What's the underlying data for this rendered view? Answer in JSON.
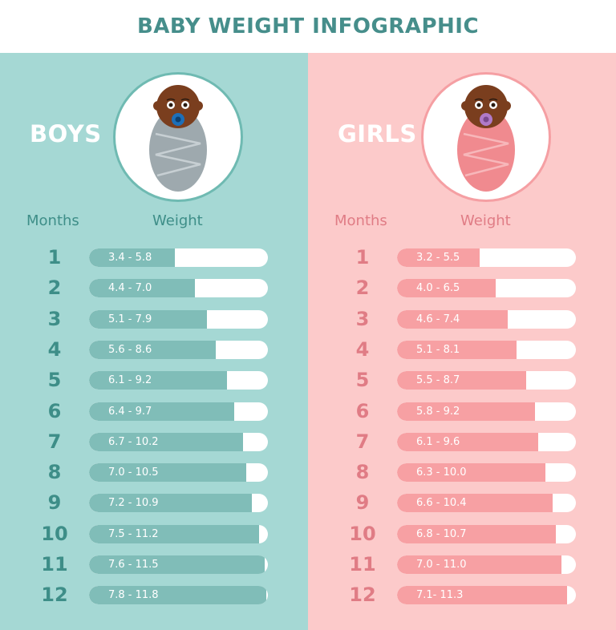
{
  "title": "BABY WEIGHT INFOGRAPHIC",
  "colors": {
    "title": "#468e8b",
    "boys_bg": "#a5d8d4",
    "boys_bar": "#80bdb8",
    "boys_text": "#3e8e88",
    "girls_bg": "#fccaca",
    "girls_bar": "#f7a0a3",
    "girls_text": "#e07c85",
    "track": "#ffffff"
  },
  "icons": {
    "boys": "swaddled-baby-boy-icon",
    "girls": "swaddled-baby-girl-icon"
  },
  "chart_data": [
    {
      "type": "bar",
      "orientation": "horizontal",
      "title": "BOYS",
      "xlabel": "Weight",
      "ylabel": "Months",
      "categories": [
        "1",
        "2",
        "3",
        "4",
        "5",
        "6",
        "7",
        "8",
        "9",
        "10",
        "11",
        "12"
      ],
      "labels": [
        "3.4 - 5.8",
        "4.4 - 7.0",
        "5.1 - 7.9",
        "5.6 - 8.6",
        "6.1 - 9.2",
        "6.4 - 9.7",
        "6.7 - 10.2",
        "7.0 - 10.5",
        "7.2 - 10.9",
        "7.5 - 11.2",
        "7.6 - 11.5",
        "7.8 - 11.8"
      ],
      "series": [
        {
          "values": [
            3.4,
            4.4,
            5.1,
            5.6,
            6.1,
            6.4,
            6.7,
            7.0,
            7.2,
            7.5,
            7.6,
            7.8
          ]
        },
        {
          "values": [
            5.8,
            7.0,
            7.9,
            8.6,
            9.2,
            9.7,
            10.2,
            10.5,
            10.9,
            11.2,
            11.5,
            11.8
          ]
        }
      ],
      "fill_fraction": [
        0.48,
        0.59,
        0.66,
        0.71,
        0.77,
        0.81,
        0.86,
        0.88,
        0.91,
        0.95,
        0.98,
        0.99
      ],
      "grid": false
    },
    {
      "type": "bar",
      "orientation": "horizontal",
      "title": "GIRLS",
      "xlabel": "Weight",
      "ylabel": "Months",
      "categories": [
        "1",
        "2",
        "3",
        "4",
        "5",
        "6",
        "7",
        "8",
        "9",
        "10",
        "11",
        "12"
      ],
      "labels": [
        "3.2 - 5.5",
        "4.0 - 6.5",
        "4.6 - 7.4",
        "5.1 - 8.1",
        "5.5 - 8.7",
        "5.8 - 9.2",
        "6.1 - 9.6",
        "6.3 - 10.0",
        "6.6 - 10.4",
        "6.8 - 10.7",
        "7.0 - 11.0",
        "7.1- 11.3"
      ],
      "series": [
        {
          "values": [
            3.2,
            4.0,
            4.6,
            5.1,
            5.5,
            5.8,
            6.1,
            6.3,
            6.6,
            6.8,
            7.0,
            7.1
          ]
        },
        {
          "values": [
            5.5,
            6.5,
            7.4,
            8.1,
            8.7,
            9.2,
            9.6,
            10.0,
            10.4,
            10.7,
            11.0,
            11.3
          ]
        }
      ],
      "fill_fraction": [
        0.46,
        0.55,
        0.62,
        0.67,
        0.72,
        0.77,
        0.79,
        0.83,
        0.87,
        0.89,
        0.92,
        0.95
      ],
      "grid": false
    }
  ]
}
